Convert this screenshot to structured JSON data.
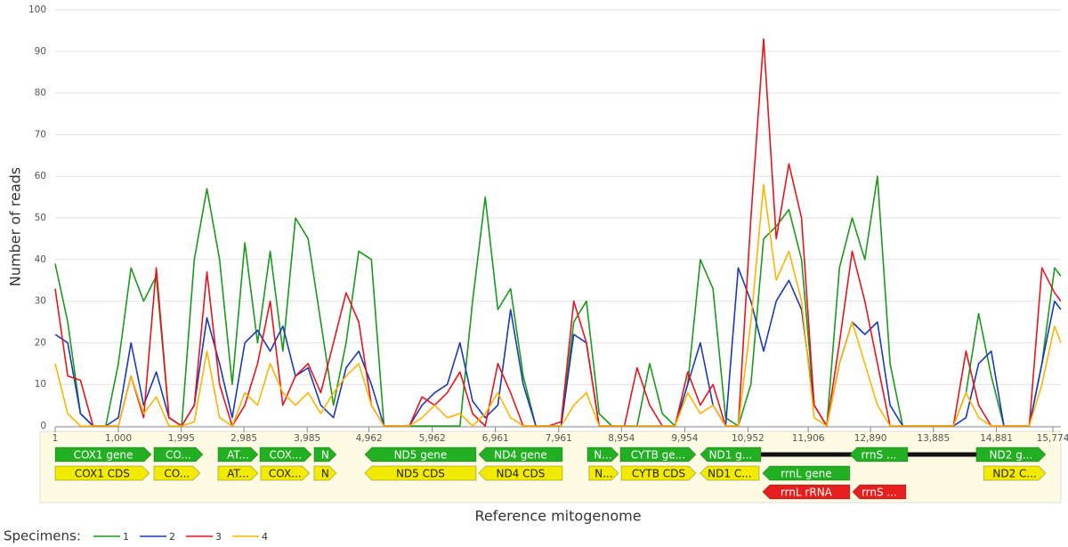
{
  "chart_data": {
    "type": "line",
    "y_label": "Number of reads",
    "x_label": "Reference mitogenome",
    "legend_title": "Specimens:",
    "grid": true,
    "xlim": [
      1,
      15900
    ],
    "ylim": [
      0,
      100
    ],
    "yticks": [
      0,
      10,
      20,
      30,
      40,
      50,
      60,
      70,
      80,
      90,
      100
    ],
    "xticks": [
      1,
      {
        "value": 1000,
        "label": "1,000"
      },
      {
        "value": 1995,
        "label": "1,995"
      },
      {
        "value": 2985,
        "label": "2,985"
      },
      {
        "value": 3985,
        "label": "3,985"
      },
      {
        "value": 4962,
        "label": "4,962"
      },
      {
        "value": 5962,
        "label": "5,962"
      },
      {
        "value": 6961,
        "label": "6,961"
      },
      {
        "value": 7961,
        "label": "7,961"
      },
      {
        "value": 8954,
        "label": "8,954"
      },
      {
        "value": 9954,
        "label": "9,954"
      },
      {
        "value": 10952,
        "label": "10,952"
      },
      {
        "value": 11906,
        "label": "11,906"
      },
      {
        "value": 12890,
        "label": "12,890"
      },
      {
        "value": 13885,
        "label": "13,885"
      },
      {
        "value": 14881,
        "label": "14,881"
      },
      {
        "value": 15774,
        "label": "15,774"
      }
    ],
    "x": [
      1,
      200,
      400,
      600,
      800,
      1000,
      1200,
      1400,
      1600,
      1800,
      2000,
      2200,
      2400,
      2600,
      2800,
      3000,
      3200,
      3400,
      3600,
      3800,
      4000,
      4200,
      4400,
      4600,
      4800,
      5000,
      5200,
      5400,
      5600,
      5800,
      6000,
      6200,
      6400,
      6600,
      6800,
      7000,
      7200,
      7400,
      7600,
      7800,
      8000,
      8200,
      8400,
      8600,
      8800,
      9000,
      9200,
      9400,
      9600,
      9800,
      10000,
      10200,
      10400,
      10600,
      10800,
      11000,
      11200,
      11400,
      11600,
      11800,
      12000,
      12200,
      12400,
      12600,
      12800,
      13000,
      13200,
      13400,
      13600,
      13800,
      14000,
      14200,
      14400,
      14600,
      14800,
      15000,
      15200,
      15400,
      15600,
      15800,
      15900
    ],
    "series": [
      {
        "name": "1",
        "color": "#1a9a1a",
        "values": [
          39,
          25,
          3,
          0,
          0,
          15,
          38,
          30,
          36,
          2,
          0,
          40,
          57,
          40,
          10,
          44,
          20,
          42,
          18,
          50,
          45,
          25,
          5,
          20,
          42,
          40,
          0,
          0,
          0,
          0,
          0,
          0,
          0,
          30,
          55,
          28,
          33,
          12,
          0,
          0,
          0,
          25,
          30,
          3,
          0,
          0,
          0,
          15,
          3,
          0,
          10,
          40,
          33,
          2,
          0,
          10,
          45,
          48,
          52,
          40,
          5,
          0,
          38,
          50,
          40,
          60,
          15,
          0,
          0,
          0,
          0,
          0,
          8,
          27,
          12,
          0,
          0,
          0,
          15,
          38,
          36
        ]
      },
      {
        "name": "2",
        "color": "#1a3ab8",
        "values": [
          22,
          20,
          3,
          0,
          0,
          2,
          20,
          5,
          13,
          2,
          0,
          5,
          26,
          15,
          2,
          20,
          23,
          18,
          24,
          12,
          14,
          5,
          2,
          14,
          18,
          10,
          0,
          0,
          0,
          5,
          8,
          10,
          20,
          6,
          2,
          5,
          28,
          10,
          0,
          0,
          0,
          22,
          20,
          0,
          0,
          0,
          0,
          0,
          0,
          0,
          10,
          20,
          5,
          0,
          38,
          30,
          18,
          30,
          35,
          28,
          5,
          0,
          15,
          25,
          22,
          25,
          5,
          0,
          0,
          0,
          0,
          0,
          2,
          15,
          18,
          0,
          0,
          0,
          15,
          30,
          28
        ]
      },
      {
        "name": "3",
        "color": "#e8141e",
        "values": [
          33,
          12,
          11,
          0,
          0,
          0,
          12,
          2,
          38,
          2,
          0,
          5,
          37,
          10,
          0,
          5,
          15,
          30,
          5,
          12,
          15,
          8,
          20,
          32,
          25,
          5,
          0,
          0,
          0,
          7,
          5,
          8,
          13,
          3,
          0,
          15,
          8,
          0,
          0,
          0,
          1,
          30,
          20,
          0,
          0,
          0,
          14,
          5,
          0,
          0,
          13,
          5,
          10,
          0,
          0,
          50,
          93,
          45,
          63,
          50,
          5,
          0,
          20,
          42,
          30,
          15,
          0,
          0,
          0,
          0,
          0,
          0,
          18,
          5,
          0,
          0,
          0,
          0,
          38,
          32,
          30
        ]
      },
      {
        "name": "4",
        "color": "#ffb400",
        "values": [
          15,
          3,
          0,
          0,
          0,
          0,
          12,
          3,
          7,
          0,
          0,
          1,
          18,
          2,
          0,
          8,
          5,
          15,
          8,
          5,
          8,
          3,
          8,
          12,
          15,
          5,
          0,
          0,
          0,
          2,
          5,
          2,
          3,
          0,
          3,
          8,
          2,
          0,
          0,
          0,
          0,
          5,
          8,
          0,
          0,
          0,
          0,
          0,
          0,
          0,
          8,
          3,
          5,
          0,
          0,
          25,
          58,
          35,
          42,
          30,
          2,
          0,
          15,
          25,
          15,
          5,
          0,
          0,
          0,
          0,
          0,
          0,
          8,
          2,
          0,
          0,
          0,
          0,
          10,
          24,
          20
        ]
      }
    ],
    "annotation_rows": [
      [
        {
          "label": "COX1 gene",
          "start": 1,
          "end": 1520,
          "direction": "forward",
          "color": "#22b022"
        },
        {
          "label": "CO...",
          "start": 1562,
          "end": 2336,
          "direction": "forward",
          "color": "#22b022"
        },
        {
          "label": "AT...",
          "start": 2575,
          "end": 3208,
          "direction": "forward",
          "color": "#22b022"
        },
        {
          "label": "COX...",
          "start": 3236,
          "end": 4052,
          "direction": "forward",
          "color": "#22b022"
        },
        {
          "label": "N",
          "start": 4094,
          "end": 4446,
          "direction": "forward",
          "color": "#22b022"
        },
        {
          "label": "ND5 gene",
          "start": 4896,
          "end": 6655,
          "direction": "reverse",
          "color": "#22b022"
        },
        {
          "label": "ND4 gene",
          "start": 6697,
          "end": 8020,
          "direction": "reverse",
          "color": "#22b022"
        },
        {
          "label": "N...",
          "start": 8414,
          "end": 8906,
          "direction": "forward",
          "color": "#22b022"
        },
        {
          "label": "CYTB ge...",
          "start": 8934,
          "end": 10130,
          "direction": "forward",
          "color": "#22b022"
        },
        {
          "label": "ND1 g...",
          "start": 10200,
          "end": 11157,
          "direction": "reverse",
          "color": "#22b022"
        },
        {
          "label": "rrnS ...",
          "start": 12564,
          "end": 13479,
          "direction": "reverse",
          "color": "#22b022"
        },
        {
          "label": "ND2 g...",
          "start": 14562,
          "end": 15660,
          "direction": "forward",
          "color": "#22b022"
        }
      ],
      [
        {
          "label": "COX1 CDS",
          "start": 1,
          "end": 1490,
          "direction": "forward",
          "color": "#f2ea00"
        },
        {
          "label": "CO...",
          "start": 1562,
          "end": 2290,
          "direction": "forward",
          "color": "#f2ea00"
        },
        {
          "label": "AT...",
          "start": 2575,
          "end": 3208,
          "direction": "forward",
          "color": "#f2ea00"
        },
        {
          "label": "COX...",
          "start": 3250,
          "end": 4020,
          "direction": "forward",
          "color": "#f2ea00"
        },
        {
          "label": "N",
          "start": 4094,
          "end": 4446,
          "direction": "forward",
          "color": "#f2ea00"
        },
        {
          "label": "ND5 CDS",
          "start": 4896,
          "end": 6655,
          "direction": "reverse",
          "color": "#f2ea00"
        },
        {
          "label": "ND4 CDS",
          "start": 6697,
          "end": 8020,
          "direction": "reverse",
          "color": "#f2ea00"
        },
        {
          "label": "N...",
          "start": 8440,
          "end": 8906,
          "direction": "forward",
          "color": "#f2ea00"
        },
        {
          "label": "CYTB CDS",
          "start": 8950,
          "end": 10130,
          "direction": "forward",
          "color": "#f2ea00"
        },
        {
          "label": "ND1 C...",
          "start": 10200,
          "end": 11130,
          "direction": "reverse",
          "color": "#f2ea00"
        },
        {
          "label": "rrnL gene",
          "start": 11185,
          "end": 12564,
          "direction": "reverse",
          "color": "#22b022"
        },
        {
          "label": "ND2 C...",
          "start": 14680,
          "end": 15660,
          "direction": "forward",
          "color": "#f2ea00"
        }
      ],
      [
        {
          "label": "rrnL rRNA",
          "start": 11185,
          "end": 12564,
          "direction": "reverse",
          "color": "#e61e1e"
        },
        {
          "label": "rrnS ...",
          "start": 12606,
          "end": 13451,
          "direction": "reverse",
          "color": "#e61e1e"
        }
      ]
    ]
  }
}
